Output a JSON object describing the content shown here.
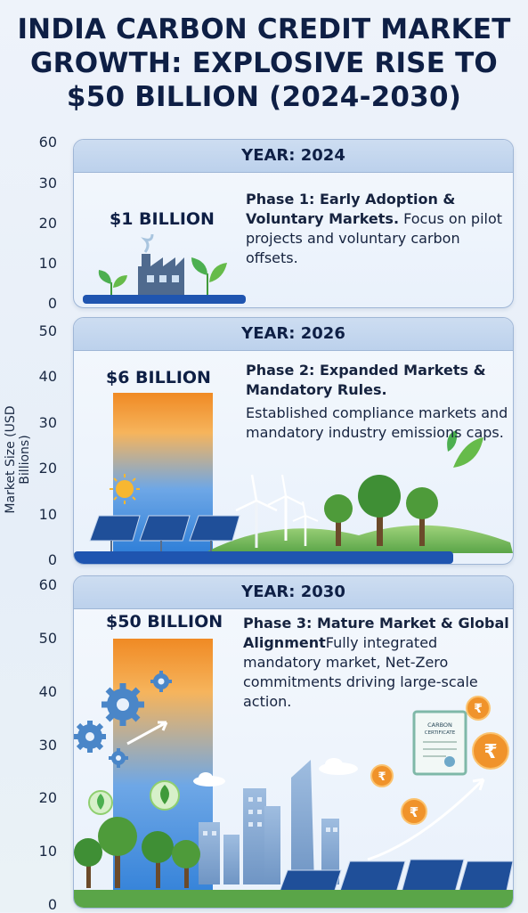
{
  "title_lines": [
    "INDIA CARBON CREDIT MARKET",
    "GROWTH: EXPLOSIVE RISE TO",
    "$50 BILLION (2024-2030)"
  ],
  "colors": {
    "navy": "#0e1f45",
    "bar_top": "#f08a24",
    "bar_bottom": "#2f7fd8",
    "baseline": "#1f55b0",
    "green": "#3f9a3a",
    "gear": "#4a86c8",
    "coin": "#f0932b"
  },
  "chart_data": {
    "type": "bar",
    "ylabel": "Market Size (USD Billions)",
    "categories": [
      "YEAR: 2024",
      "YEAR: 2026",
      "YEAR: 2030"
    ],
    "values": [
      1,
      6,
      50
    ],
    "value_labels": [
      "$1 BILLION",
      "$6 BILLION",
      "$50 BILLION"
    ],
    "panels": [
      {
        "year_label": "YEAR: 2024",
        "value": 1,
        "value_label": "$1 BILLION",
        "phase_title": "Phase 1: Early Adoption & Voluntary Markets.",
        "phase_desc": "Focus on pilot projects and voluntary carbon offsets.",
        "ylim": [
          0,
          60
        ],
        "ticks": [
          0,
          10,
          20,
          30,
          60
        ]
      },
      {
        "year_label": "YEAR: 2026",
        "value": 6,
        "value_label": "$6 BILLION",
        "phase_title": "Phase 2: Expanded Markets & Mandatory Rules.",
        "phase_desc": "Established compliance markets and mandatory industry emissions caps.",
        "ylim": [
          0,
          50
        ],
        "ticks": [
          0,
          10,
          20,
          30,
          40,
          50
        ]
      },
      {
        "year_label": "YEAR: 2030",
        "value": 50,
        "value_label": "$50 BILLION",
        "phase_title": "Phase 3: Mature Market & Global Alignment",
        "phase_desc": "Fully integrated mandatory market, Net-Zero commitments driving large-scale action.",
        "ylim": [
          0,
          60
        ],
        "ticks": [
          0,
          10,
          20,
          30,
          40,
          50,
          60
        ]
      }
    ]
  },
  "certificate": {
    "line1": "CARBON",
    "line2": "CERTIFICATE"
  },
  "coin_symbol": "₹",
  "icons": [
    "factory-icon",
    "leaf-icon",
    "sun-icon",
    "solar-panel-icon",
    "wind-turbine-icon",
    "tree-icon",
    "gear-icon",
    "arrow-icon",
    "cloud-icon",
    "city-icon",
    "certificate-icon",
    "rupee-coin-icon"
  ]
}
